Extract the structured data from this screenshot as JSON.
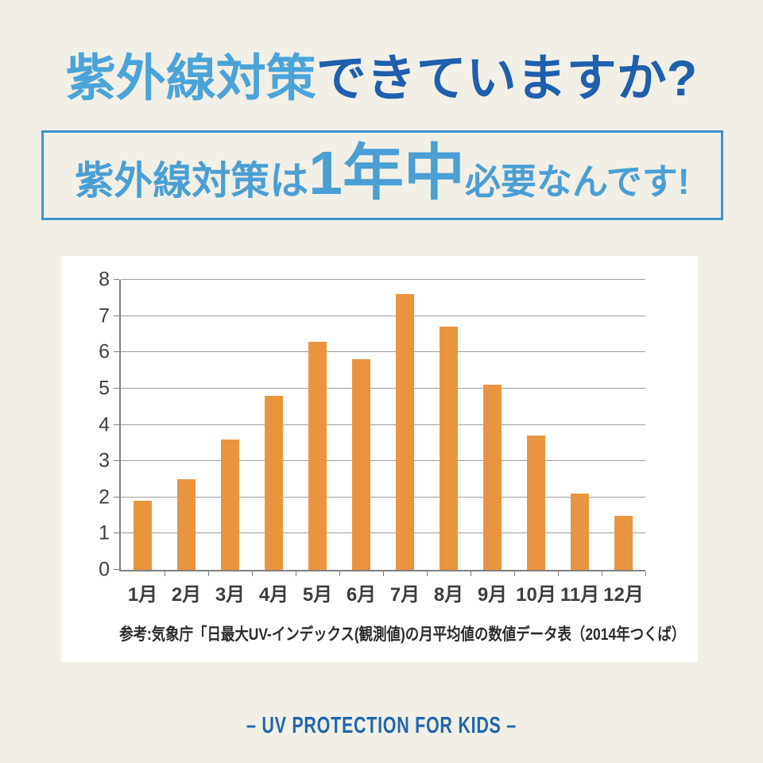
{
  "title": {
    "highlight": "紫外線対策",
    "rest": "できていますか?"
  },
  "banner": {
    "pre": "紫外線対策は",
    "big": "1年中",
    "post": "必要なんです!"
  },
  "footer": "– UV PROTECTION FOR KIDS –",
  "colors": {
    "background": "#f2efe6",
    "title_highlight": "#4ba4d9",
    "title_rest": "#1e5fae",
    "banner_border": "#3e93c9",
    "banner_text": "#4a9fd4",
    "bar": "#e9953f",
    "footer_text": "#2166ae"
  },
  "chart_data": {
    "type": "bar",
    "categories": [
      "1月",
      "2月",
      "3月",
      "4月",
      "5月",
      "6月",
      "7月",
      "8月",
      "9月",
      "10月",
      "11月",
      "12月"
    ],
    "values": [
      1.9,
      2.5,
      3.6,
      4.8,
      6.3,
      5.8,
      7.6,
      6.7,
      5.1,
      3.7,
      2.1,
      1.5
    ],
    "title": "",
    "xlabel": "",
    "ylabel": "",
    "ylim": [
      0,
      8
    ],
    "yticks": [
      0,
      1,
      2,
      3,
      4,
      5,
      6,
      7,
      8
    ],
    "grid": true,
    "legend": false,
    "bar_color": "#e9953f",
    "caption": "参考:気象庁「日最大UV-インデックス(観測値)の月平均値の数値データ表（2014年つくば）"
  }
}
